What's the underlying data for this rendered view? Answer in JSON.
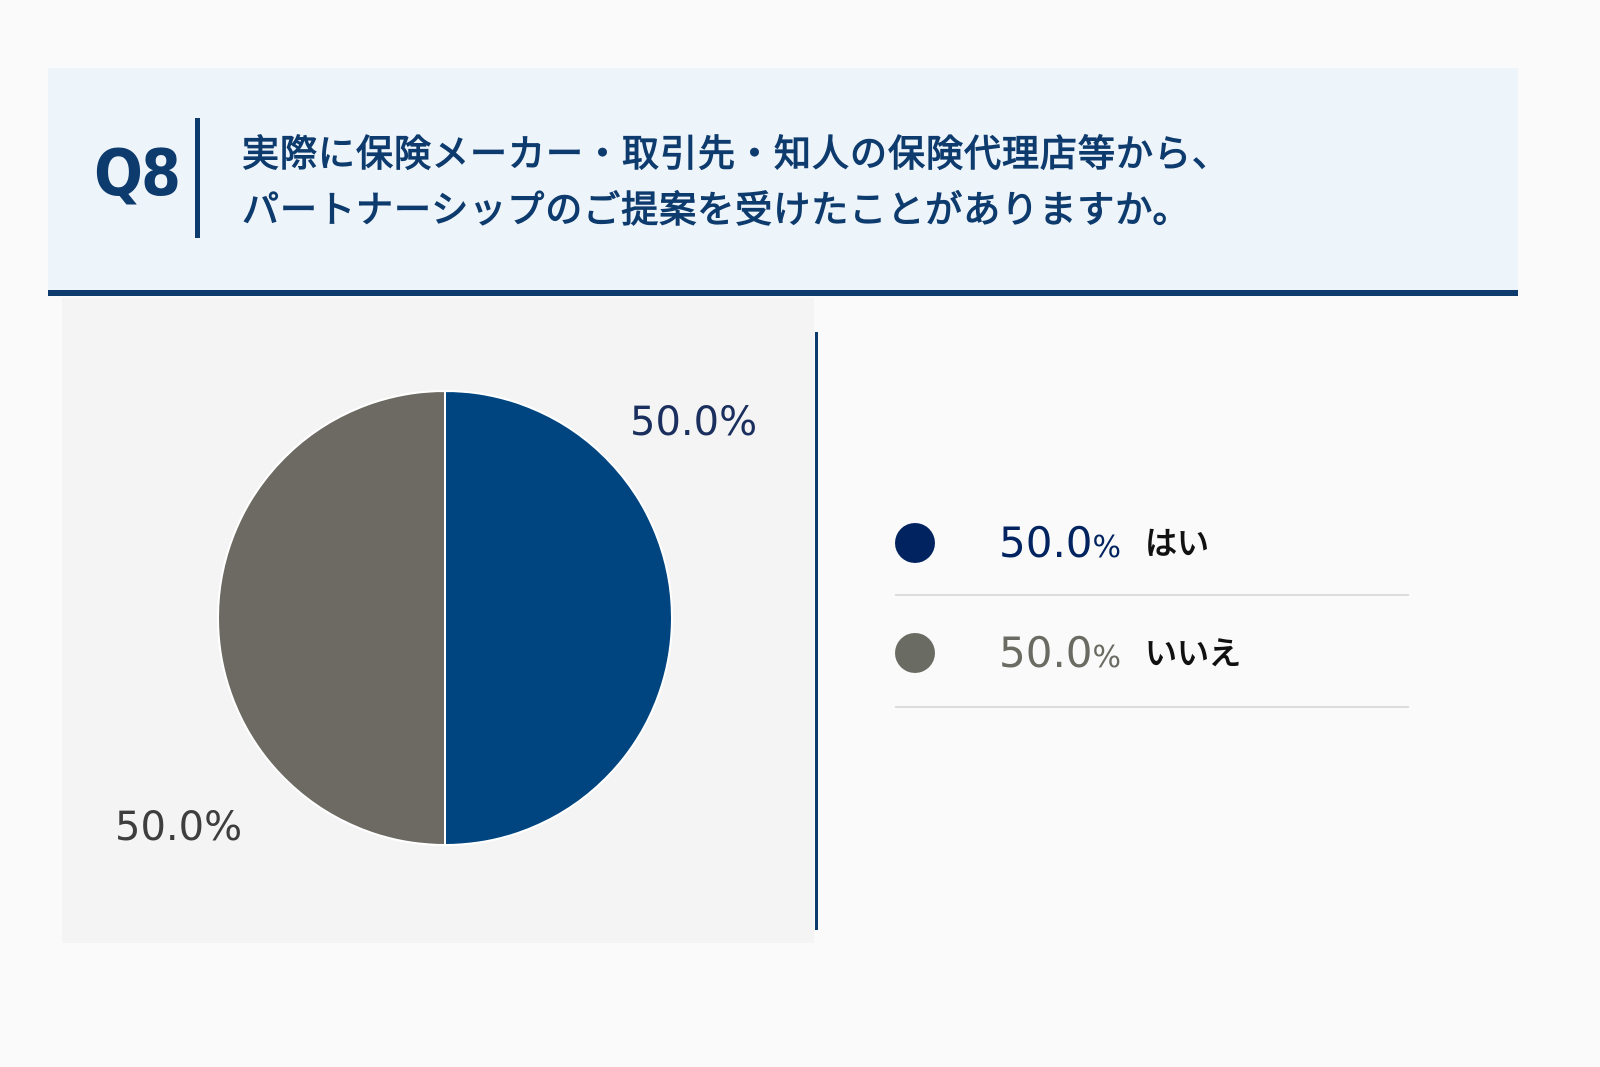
{
  "header": {
    "q_label": "Q8",
    "question_lines": [
      "実際に保険メーカー・取引先・知人の保険代理店等から、",
      "パートナーシップのご提案を受けたことがありますか。"
    ]
  },
  "colors": {
    "accent": "#0e3b6e",
    "header_bg": "#eef5fa",
    "slice_yes": "#004480",
    "slice_no": "#6c6a62",
    "dot_yes": "#012360",
    "dot_no": "#6a6b62"
  },
  "chart_data": {
    "type": "pie",
    "categories": [
      "はい",
      "いいえ"
    ],
    "values": [
      50.0,
      50.0
    ],
    "value_labels": [
      "50.0%",
      "50.0%"
    ],
    "legend_position": "right"
  },
  "legend": {
    "items": [
      {
        "pct": "50.0",
        "unit": "%",
        "label": "はい"
      },
      {
        "pct": "50.0",
        "unit": "%",
        "label": "いいえ"
      }
    ]
  }
}
